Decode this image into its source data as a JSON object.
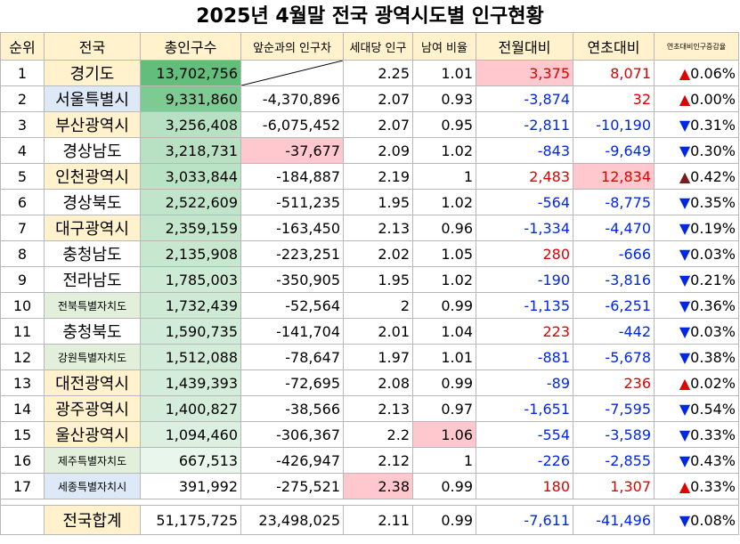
{
  "title": "2025년 4월말 전국 광역시도별 인구현황",
  "headers": [
    "순위",
    "전국",
    "총인구수",
    "앞순과의 인구차",
    "세대당 인구",
    "남여 비율",
    "전월대비",
    "연초대비",
    "연초대비인구증감율"
  ],
  "rows": [
    {
      "rank": "1",
      "name": "경기도",
      "pop": "13,702,756",
      "diff": "",
      "hh": "2.25",
      "ratio": "1.01",
      "mom": "3,375",
      "ytd": "8,071",
      "rate": "0.06%",
      "dir": "up"
    },
    {
      "rank": "2",
      "name": "서울특별시",
      "pop": "9,331,860",
      "diff": "-4,370,896",
      "hh": "2.07",
      "ratio": "0.93",
      "mom": "-3,874",
      "ytd": "32",
      "rate": "0.00%",
      "dir": "up"
    },
    {
      "rank": "3",
      "name": "부산광역시",
      "pop": "3,256,408",
      "diff": "-6,075,452",
      "hh": "2.07",
      "ratio": "0.95",
      "mom": "-2,811",
      "ytd": "-10,190",
      "rate": "0.31%",
      "dir": "down"
    },
    {
      "rank": "4",
      "name": "경상남도",
      "pop": "3,218,731",
      "diff": "-37,677",
      "hh": "2.09",
      "ratio": "1.02",
      "mom": "-843",
      "ytd": "-9,649",
      "rate": "0.30%",
      "dir": "down"
    },
    {
      "rank": "5",
      "name": "인천광역시",
      "pop": "3,033,844",
      "diff": "-184,887",
      "hh": "2.19",
      "ratio": "1",
      "mom": "2,483",
      "ytd": "12,834",
      "rate": "0.42%",
      "dir": "up"
    },
    {
      "rank": "6",
      "name": "경상북도",
      "pop": "2,522,609",
      "diff": "-511,235",
      "hh": "1.95",
      "ratio": "1.02",
      "mom": "-564",
      "ytd": "-8,775",
      "rate": "0.35%",
      "dir": "down"
    },
    {
      "rank": "7",
      "name": "대구광역시",
      "pop": "2,359,159",
      "diff": "-163,450",
      "hh": "2.13",
      "ratio": "0.96",
      "mom": "-1,334",
      "ytd": "-4,470",
      "rate": "0.19%",
      "dir": "down"
    },
    {
      "rank": "8",
      "name": "충청남도",
      "pop": "2,135,908",
      "diff": "-223,251",
      "hh": "2.02",
      "ratio": "1.05",
      "mom": "280",
      "ytd": "-666",
      "rate": "0.03%",
      "dir": "down"
    },
    {
      "rank": "9",
      "name": "전라남도",
      "pop": "1,785,003",
      "diff": "-350,905",
      "hh": "1.95",
      "ratio": "1.02",
      "mom": "-190",
      "ytd": "-3,816",
      "rate": "0.21%",
      "dir": "down"
    },
    {
      "rank": "10",
      "name": "전북특별자치도",
      "pop": "1,732,439",
      "diff": "-52,564",
      "hh": "2",
      "ratio": "0.99",
      "mom": "-1,135",
      "ytd": "-6,251",
      "rate": "0.36%",
      "dir": "down"
    },
    {
      "rank": "11",
      "name": "충청북도",
      "pop": "1,590,735",
      "diff": "-141,704",
      "hh": "2.01",
      "ratio": "1.04",
      "mom": "223",
      "ytd": "-442",
      "rate": "0.03%",
      "dir": "down"
    },
    {
      "rank": "12",
      "name": "강원특별자치도",
      "pop": "1,512,088",
      "diff": "-78,647",
      "hh": "1.97",
      "ratio": "1.01",
      "mom": "-881",
      "ytd": "-5,678",
      "rate": "0.38%",
      "dir": "down"
    },
    {
      "rank": "13",
      "name": "대전광역시",
      "pop": "1,439,393",
      "diff": "-72,695",
      "hh": "2.08",
      "ratio": "0.99",
      "mom": "-89",
      "ytd": "236",
      "rate": "0.02%",
      "dir": "up"
    },
    {
      "rank": "14",
      "name": "광주광역시",
      "pop": "1,400,827",
      "diff": "-38,566",
      "hh": "2.13",
      "ratio": "0.97",
      "mom": "-1,651",
      "ytd": "-7,595",
      "rate": "0.54%",
      "dir": "down"
    },
    {
      "rank": "15",
      "name": "울산광역시",
      "pop": "1,094,460",
      "diff": "-306,367",
      "hh": "2.2",
      "ratio": "1.06",
      "mom": "-554",
      "ytd": "-3,589",
      "rate": "0.33%",
      "dir": "down"
    },
    {
      "rank": "16",
      "name": "제주특별자치도",
      "pop": "667,513",
      "diff": "-426,947",
      "hh": "2.12",
      "ratio": "1",
      "mom": "-226",
      "ytd": "-2,855",
      "rate": "0.43%",
      "dir": "down"
    },
    {
      "rank": "17",
      "name": "세종특별자치시",
      "pop": "391,992",
      "diff": "-275,521",
      "hh": "2.38",
      "ratio": "0.99",
      "mom": "180",
      "ytd": "1,307",
      "rate": "0.33%",
      "dir": "up"
    }
  ],
  "total": {
    "name": "전국합계",
    "pop": "51,175,725",
    "diff": "23,498,025",
    "hh": "2.11",
    "ratio": "0.99",
    "mom": "-7,611",
    "ytd": "-41,496",
    "rate": "0.08%",
    "dir": "down"
  },
  "arrows": {
    "up": "▲",
    "down": "▼"
  },
  "colors": {
    "header_bg": "#fff2cc",
    "positive": "#e00000",
    "negative": "#0026e6",
    "arrow_up": "#e00000",
    "arrow_up_dark": "#7b1c1c",
    "arrow_down": "#0026e6",
    "highlight_pink": "#ffc7ce",
    "name_yellow": "#fff2cc",
    "name_blue": "#dde9f6",
    "name_green": "#e2efda",
    "pop_scale_high": "#63be7b",
    "pop_scale_low": "#ffffff"
  }
}
